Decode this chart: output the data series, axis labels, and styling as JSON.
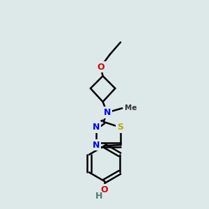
{
  "bg_color": "#dde8e8",
  "bond_color": "#000000",
  "bond_width": 1.8,
  "atom_colors": {
    "N": "#0000ee",
    "O": "#dd0000",
    "S": "#bbaa00",
    "C": "#000000",
    "H": "#4a7a6a"
  },
  "font_size_atom": 9,
  "font_size_small": 8
}
